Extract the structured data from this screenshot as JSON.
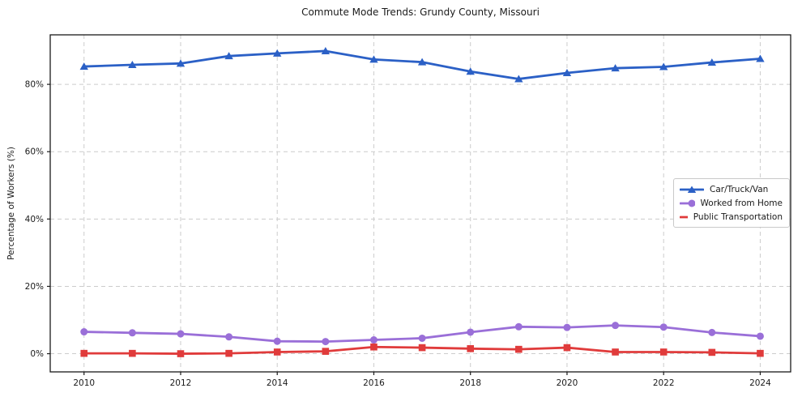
{
  "title": "Commute Mode Trends: Grundy County, Missouri",
  "ylabel": "Percentage of Workers (%)",
  "chart_data": {
    "type": "line",
    "x": [
      2010,
      2011,
      2012,
      2013,
      2014,
      2015,
      2016,
      2017,
      2018,
      2019,
      2020,
      2021,
      2022,
      2023,
      2024
    ],
    "series": [
      {
        "name": "Car/Truck/Van",
        "color": "#2b60c6",
        "marker": "triangle",
        "values": [
          85.3,
          85.8,
          86.2,
          88.4,
          89.2,
          89.9,
          87.4,
          86.6,
          83.8,
          81.6,
          83.4,
          84.8,
          85.2,
          86.5,
          87.6
        ]
      },
      {
        "name": "Worked from Home",
        "color": "#9a6fd8",
        "marker": "circle",
        "values": [
          6.5,
          6.2,
          5.9,
          5.0,
          3.7,
          3.6,
          4.1,
          4.6,
          6.4,
          8.0,
          7.8,
          8.4,
          7.9,
          6.3,
          5.2
        ]
      },
      {
        "name": "Public Transportation",
        "color": "#e03b3b",
        "marker": "square",
        "values": [
          0.1,
          0.1,
          0.0,
          0.1,
          0.5,
          0.7,
          2.0,
          1.8,
          1.5,
          1.3,
          1.8,
          0.5,
          0.5,
          0.4,
          0.1
        ]
      }
    ],
    "xticks": [
      2010,
      2012,
      2014,
      2016,
      2018,
      2020,
      2022,
      2024
    ],
    "yticks": [
      0,
      20,
      40,
      60,
      80
    ],
    "ytick_suffix": "%",
    "xlim": [
      2009.3,
      2024.63
    ],
    "ylim": [
      -5.4,
      94.7
    ],
    "grid": true,
    "legend_position": "center-right",
    "colors": {
      "grid": "#cccccc",
      "spine": "#1a1a1a",
      "text": "#1a1a1a",
      "background": "#ffffff"
    }
  }
}
